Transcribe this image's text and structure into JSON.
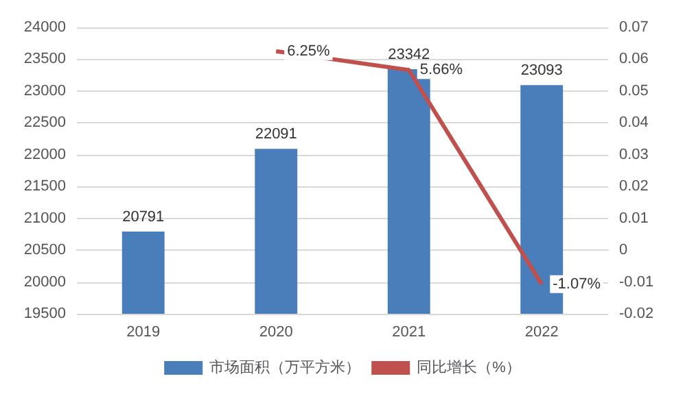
{
  "chart_data": {
    "type": "bar",
    "categories": [
      "2019",
      "2020",
      "2021",
      "2022"
    ],
    "series": [
      {
        "name": "市场面积（万平方米）",
        "color": "#4a7ebb",
        "values": [
          20791,
          22091,
          23342,
          23093
        ],
        "value_labels": [
          "20791",
          "22091",
          "23342",
          "23093"
        ]
      },
      {
        "name": "同比增长（%）",
        "type": "line",
        "axis": "y2",
        "color": "#c0504d",
        "values": [
          null,
          0.0625,
          0.0566,
          -0.0107
        ],
        "value_labels": [
          null,
          "6.25%",
          "5.66%",
          "-1.07%"
        ]
      }
    ],
    "ylim": [
      19500,
      24000
    ],
    "yticks": [
      19500,
      20000,
      20500,
      21000,
      21500,
      22000,
      22500,
      23000,
      23500,
      24000
    ],
    "y2lim": [
      -0.02,
      0.07
    ],
    "y2ticks": [
      -0.02,
      -0.01,
      0,
      0.01,
      0.02,
      0.03,
      0.04,
      0.05,
      0.06,
      0.07
    ],
    "grid": "y",
    "legend": "bottom",
    "marker": "none"
  }
}
